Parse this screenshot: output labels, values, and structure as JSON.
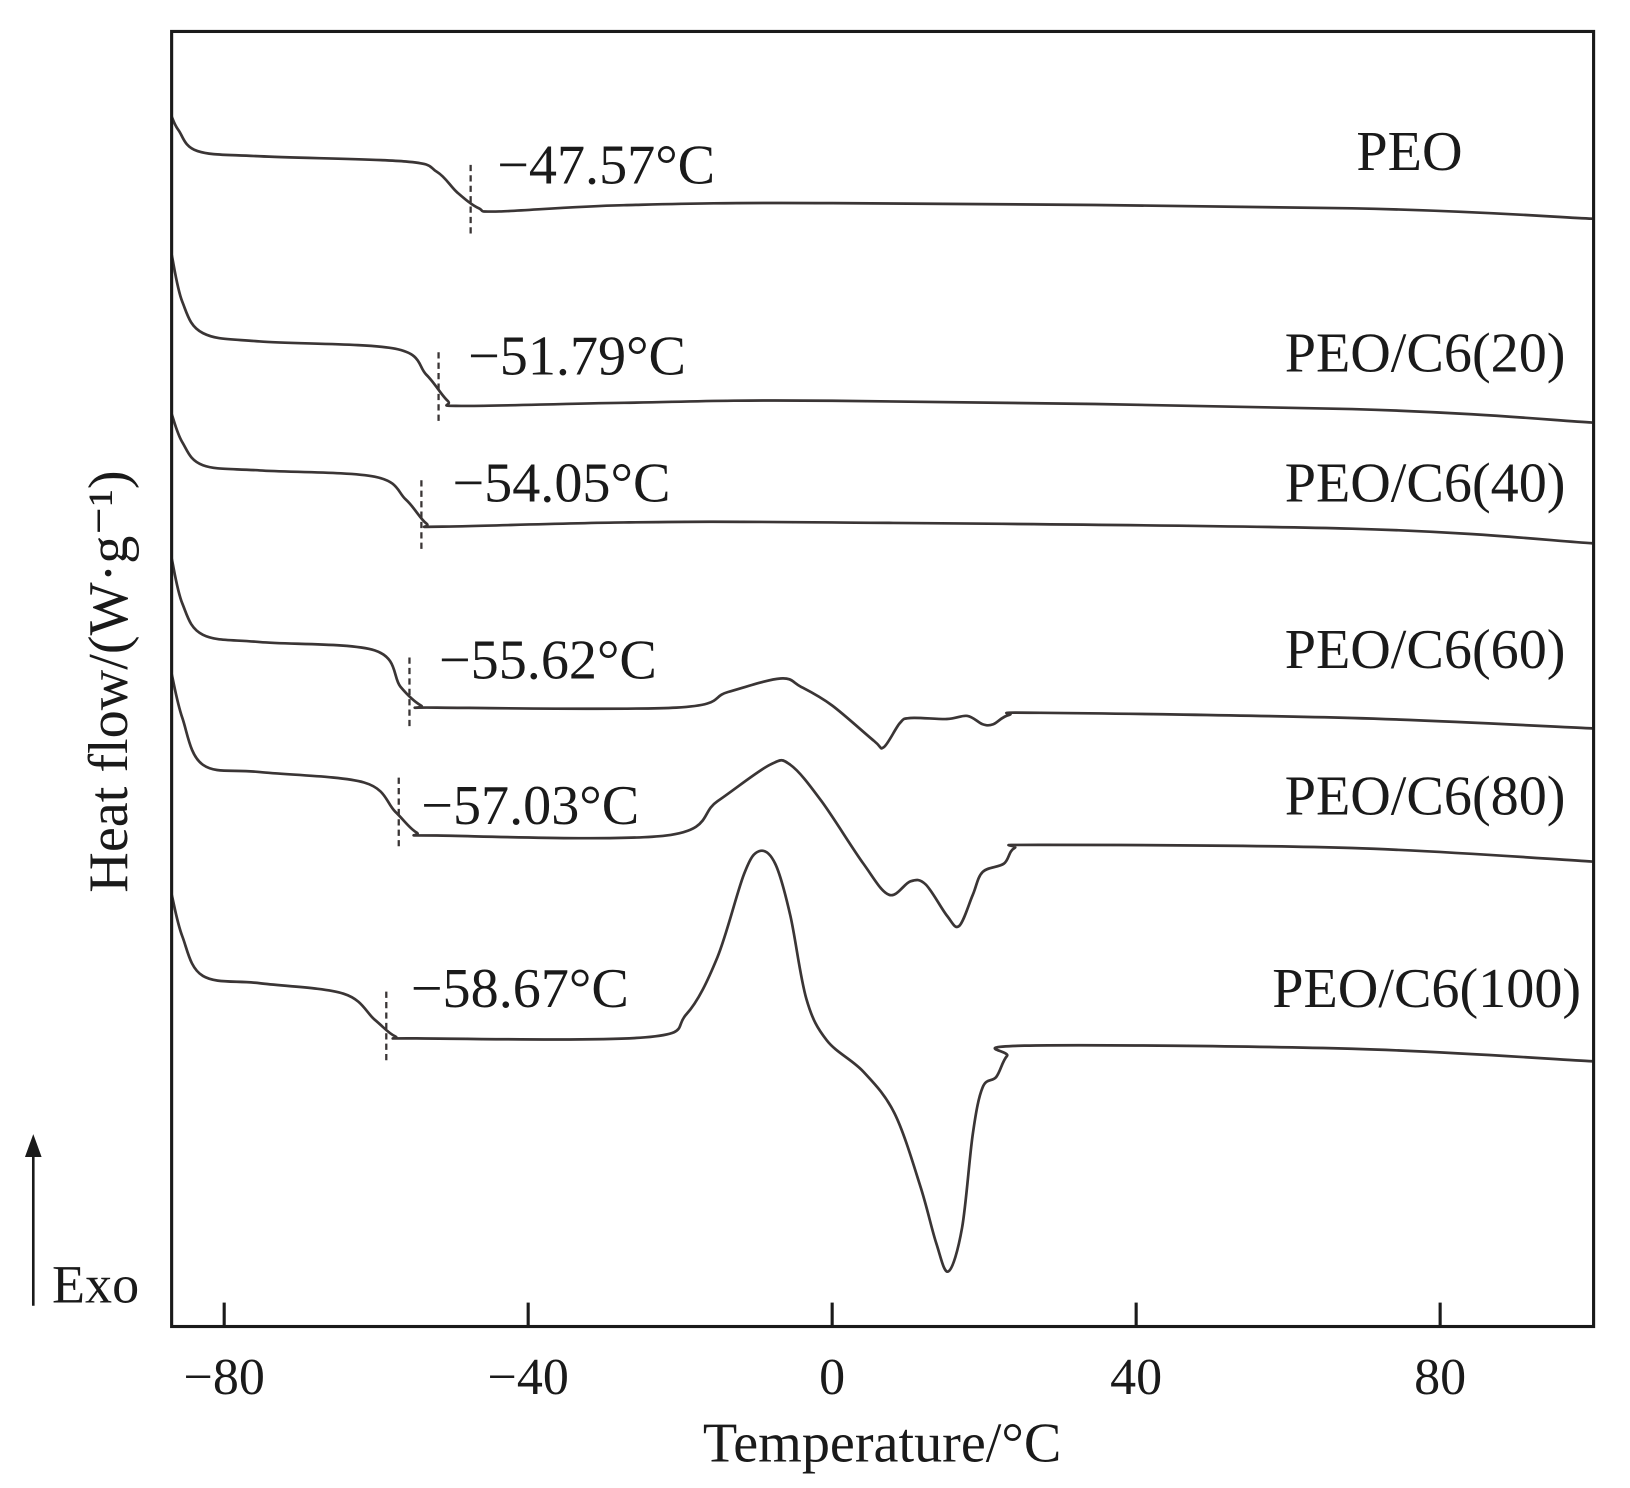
{
  "chart_data": {
    "type": "line",
    "title": "",
    "xlabel": "Temperature/°C",
    "ylabel": "Heat flow/(W·g⁻¹)",
    "xlim": [
      -87,
      100
    ],
    "ylim": [
      0,
      12.45
    ],
    "y_units": "arbitrary (offset curves)",
    "x_ticks": [
      -80,
      -40,
      0,
      40,
      80
    ],
    "x_tick_labels": [
      "−80",
      "−40",
      "0",
      "40",
      "80"
    ],
    "grid": false,
    "exo_label": "Exo",
    "exo_direction": "up",
    "line_color": "#3a3535",
    "series": [
      {
        "name": "PEO",
        "tg": -47.57,
        "tg_label": "−47.57°C",
        "points": [
          [
            -86.9,
            11.63
          ],
          [
            -86,
            11.5
          ],
          [
            -83.5,
            11.3
          ],
          [
            -75.3,
            11.25
          ],
          [
            -56.1,
            11.2
          ],
          [
            -52,
            11.1
          ],
          [
            -49.3,
            10.9
          ],
          [
            -46.5,
            10.75
          ],
          [
            -43.8,
            10.72
          ],
          [
            -27.4,
            10.78
          ],
          [
            0,
            10.8
          ],
          [
            68.4,
            10.75
          ],
          [
            100,
            10.65
          ]
        ]
      },
      {
        "name": "PEO/C6(20)",
        "tg": -51.79,
        "tg_label": "−51.79°C",
        "points": [
          [
            -86.9,
            10.3
          ],
          [
            -85.5,
            9.85
          ],
          [
            -82.8,
            9.55
          ],
          [
            -75.3,
            9.47
          ],
          [
            -57.5,
            9.4
          ],
          [
            -53.4,
            9.15
          ],
          [
            -50.6,
            8.9
          ],
          [
            -48.6,
            8.85
          ],
          [
            -27.4,
            8.88
          ],
          [
            0,
            8.9
          ],
          [
            68.4,
            8.82
          ],
          [
            100,
            8.69
          ]
        ]
      },
      {
        "name": "PEO/C6(40)",
        "tg": -54.05,
        "tg_label": "−54.05°C",
        "points": [
          [
            -86.9,
            8.77
          ],
          [
            -85.5,
            8.5
          ],
          [
            -82.8,
            8.28
          ],
          [
            -75.3,
            8.23
          ],
          [
            -60.2,
            8.17
          ],
          [
            -56.1,
            7.95
          ],
          [
            -53.4,
            7.72
          ],
          [
            -51.3,
            7.69
          ],
          [
            -27.4,
            7.73
          ],
          [
            0,
            7.73
          ],
          [
            68.4,
            7.67
          ],
          [
            100,
            7.53
          ]
        ]
      },
      {
        "name": "PEO/C6(60)",
        "tg": -55.62,
        "tg_label": "−55.62°C",
        "points": [
          [
            -86.9,
            7.38
          ],
          [
            -85.5,
            6.95
          ],
          [
            -82.8,
            6.65
          ],
          [
            -75.3,
            6.58
          ],
          [
            -60.2,
            6.5
          ],
          [
            -56.8,
            6.15
          ],
          [
            -54.1,
            5.97
          ],
          [
            -52,
            5.95
          ],
          [
            -20.5,
            5.95
          ],
          [
            -13.7,
            6.1
          ],
          [
            -6.8,
            6.23
          ],
          [
            -4.1,
            6.15
          ],
          [
            0,
            5.97
          ],
          [
            5.5,
            5.63
          ],
          [
            6.8,
            5.57
          ],
          [
            8.9,
            5.8
          ],
          [
            10.3,
            5.85
          ],
          [
            15.1,
            5.84
          ],
          [
            17.8,
            5.87
          ],
          [
            19.8,
            5.79
          ],
          [
            21.2,
            5.79
          ],
          [
            23.3,
            5.88
          ],
          [
            27.4,
            5.9
          ],
          [
            68.4,
            5.85
          ],
          [
            100,
            5.75
          ]
        ]
      },
      {
        "name": "PEO/C6(80)",
        "tg": -57.03,
        "tg_label": "−57.03°C",
        "points": [
          [
            -86.9,
            6.27
          ],
          [
            -85.5,
            5.85
          ],
          [
            -82.8,
            5.4
          ],
          [
            -75.3,
            5.33
          ],
          [
            -61.6,
            5.23
          ],
          [
            -57.5,
            4.95
          ],
          [
            -54.7,
            4.75
          ],
          [
            -52,
            4.72
          ],
          [
            -21.9,
            4.72
          ],
          [
            -15.1,
            5.05
          ],
          [
            -8.2,
            5.4
          ],
          [
            -5.5,
            5.4
          ],
          [
            -1.4,
            5.05
          ],
          [
            4.1,
            4.45
          ],
          [
            7.5,
            4.15
          ],
          [
            10.3,
            4.28
          ],
          [
            12.3,
            4.25
          ],
          [
            15.1,
            3.95
          ],
          [
            16.7,
            3.85
          ],
          [
            18.5,
            4.15
          ],
          [
            19.8,
            4.37
          ],
          [
            22.6,
            4.45
          ],
          [
            24,
            4.6
          ],
          [
            27.4,
            4.63
          ],
          [
            68.4,
            4.6
          ],
          [
            100,
            4.47
          ]
        ]
      },
      {
        "name": "PEO/C6(100)",
        "tg": -58.67,
        "tg_label": "−58.67°C",
        "points": [
          [
            -86.9,
            4.15
          ],
          [
            -85.5,
            3.75
          ],
          [
            -82.8,
            3.37
          ],
          [
            -75.3,
            3.3
          ],
          [
            -64.3,
            3.2
          ],
          [
            -60.2,
            2.95
          ],
          [
            -57.5,
            2.79
          ],
          [
            -54.7,
            2.77
          ],
          [
            -24.6,
            2.78
          ],
          [
            -19.2,
            3.0
          ],
          [
            -15.1,
            3.55
          ],
          [
            -11.6,
            4.35
          ],
          [
            -9.6,
            4.57
          ],
          [
            -7.5,
            4.45
          ],
          [
            -5.5,
            3.95
          ],
          [
            -3.4,
            3.15
          ],
          [
            -0.7,
            2.75
          ],
          [
            4.1,
            2.45
          ],
          [
            8.2,
            2.05
          ],
          [
            11.6,
            1.35
          ],
          [
            13.7,
            0.8
          ],
          [
            15.3,
            0.53
          ],
          [
            17.1,
            0.95
          ],
          [
            18.5,
            1.85
          ],
          [
            19.8,
            2.3
          ],
          [
            21.6,
            2.4
          ],
          [
            23,
            2.6
          ],
          [
            25.3,
            2.7
          ],
          [
            68.4,
            2.67
          ],
          [
            100,
            2.55
          ]
        ]
      }
    ]
  }
}
